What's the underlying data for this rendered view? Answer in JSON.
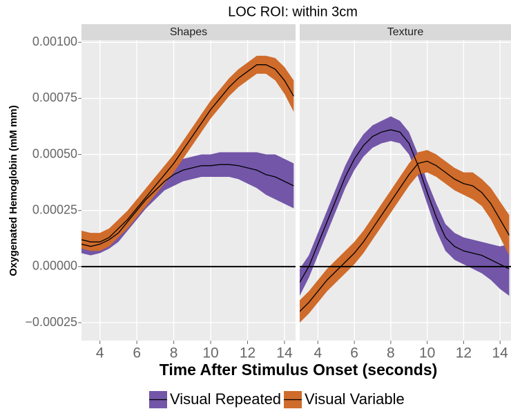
{
  "chart_data": {
    "type": "line",
    "title": "LOC ROI: within 3cm",
    "xlabel": "Time After Stimulus Onset (seconds)",
    "ylabel": "Oxygenated Hemoglobin (mM mm)",
    "xlim": [
      3,
      14.6
    ],
    "ylim": [
      -0.00033,
      0.00101
    ],
    "xticks": [
      4,
      6,
      8,
      10,
      12,
      14
    ],
    "yticks": [
      {
        "value": -0.00025,
        "label": "−0.00025"
      },
      {
        "value": 0,
        "label": "0.00000"
      },
      {
        "value": 0.00025,
        "label": "0.00025"
      },
      {
        "value": 0.0005,
        "label": "0.00050"
      },
      {
        "value": 0.00075,
        "label": "0.00075"
      },
      {
        "value": 0.001,
        "label": "0.00100"
      }
    ],
    "grid": true,
    "hline": 0,
    "legend": "bottom",
    "x": [
      3,
      3.5,
      4,
      4.5,
      5,
      5.5,
      6,
      6.5,
      7,
      7.5,
      8,
      8.5,
      9,
      9.5,
      10,
      10.5,
      11,
      11.5,
      12,
      12.5,
      13,
      13.5,
      14,
      14.5
    ],
    "facets": [
      {
        "title": "Shapes",
        "series": [
          {
            "name": "Visual Repeated",
            "color": "#7356a8",
            "values": [
              0.0001,
              9e-05,
              0.0001,
              0.00012,
              0.00015,
              0.0002,
              0.00025,
              0.0003,
              0.00034,
              0.00038,
              0.00041,
              0.00043,
              0.00044,
              0.00045,
              0.00045,
              0.000455,
              0.000455,
              0.00045,
              0.00044,
              0.00043,
              0.00041,
              0.0004,
              0.00038,
              0.00036
            ],
            "lower": [
              6e-05,
              5e-05,
              6e-05,
              8e-05,
              0.00011,
              0.00016,
              0.00021,
              0.00026,
              0.0003,
              0.00034,
              0.00036,
              0.00038,
              0.00039,
              0.0004,
              0.0004,
              0.0004,
              0.0004,
              0.00039,
              0.00037,
              0.00035,
              0.00032,
              0.0003,
              0.00028,
              0.00026
            ],
            "upper": [
              0.00014,
              0.00013,
              0.00014,
              0.00016,
              0.00019,
              0.00024,
              0.00029,
              0.00034,
              0.00038,
              0.00042,
              0.00046,
              0.00048,
              0.00049,
              0.0005,
              0.0005,
              0.00051,
              0.00051,
              0.00051,
              0.00051,
              0.00051,
              0.0005,
              0.0005,
              0.00048,
              0.00046
            ]
          },
          {
            "name": "Visual Variable",
            "color": "#cf6b2b",
            "values": [
              0.00012,
              0.00011,
              0.00011,
              0.00013,
              0.00017,
              0.00021,
              0.00026,
              0.00031,
              0.00036,
              0.00041,
              0.00046,
              0.00052,
              0.00058,
              0.00064,
              0.0007,
              0.00075,
              0.0008,
              0.00084,
              0.00087,
              0.0009,
              0.0009,
              0.00088,
              0.00083,
              0.00076
            ],
            "lower": [
              8e-05,
              7e-05,
              7e-05,
              9e-05,
              0.00013,
              0.00017,
              0.00022,
              0.00027,
              0.00032,
              0.00037,
              0.00042,
              0.00048,
              0.00054,
              0.0006,
              0.00066,
              0.00071,
              0.00076,
              0.0008,
              0.00083,
              0.00086,
              0.00086,
              0.00083,
              0.00077,
              0.00069
            ],
            "upper": [
              0.00016,
              0.00015,
              0.00015,
              0.00017,
              0.00021,
              0.00025,
              0.0003,
              0.00035,
              0.0004,
              0.00045,
              0.0005,
              0.00056,
              0.00062,
              0.00068,
              0.00074,
              0.00079,
              0.00084,
              0.00088,
              0.00091,
              0.00094,
              0.00094,
              0.00093,
              0.00089,
              0.00083
            ]
          }
        ]
      },
      {
        "title": "Texture",
        "series": [
          {
            "name": "Visual Repeated",
            "color": "#7356a8",
            "values": [
              -7e-05,
              0.0,
              0.0001,
              0.0002,
              0.0003,
              0.0004,
              0.00048,
              0.00054,
              0.00058,
              0.0006,
              0.00061,
              0.0006,
              0.00055,
              0.00045,
              0.00033,
              0.00022,
              0.00013,
              9e-05,
              7e-05,
              6e-05,
              5e-05,
              3e-05,
              1e-05,
              -1e-05
            ],
            "lower": [
              -0.00013,
              -5e-05,
              5e-05,
              0.00015,
              0.00025,
              0.00035,
              0.00043,
              0.00049,
              0.00053,
              0.00055,
              0.00056,
              0.00055,
              0.0005,
              0.0004,
              0.00028,
              0.00016,
              7e-05,
              3e-05,
              1e-05,
              -1e-05,
              -3e-05,
              -6e-05,
              -0.0001,
              -0.00013
            ],
            "upper": [
              -1e-05,
              5e-05,
              0.00015,
              0.00025,
              0.00035,
              0.00045,
              0.00053,
              0.00059,
              0.00063,
              0.00065,
              0.00067,
              0.00065,
              0.0006,
              0.0005,
              0.00038,
              0.00028,
              0.00019,
              0.00015,
              0.00013,
              0.00012,
              0.00011,
              0.0001,
              9e-05,
              0.0001
            ]
          },
          {
            "name": "Visual Variable",
            "color": "#cf6b2b",
            "values": [
              -0.0002,
              -0.00016,
              -0.00011,
              -6e-05,
              -2e-05,
              2e-05,
              6e-05,
              0.00011,
              0.00017,
              0.00023,
              0.00029,
              0.00035,
              0.00041,
              0.00046,
              0.00047,
              0.00045,
              0.00042,
              0.00039,
              0.00037,
              0.00036,
              0.00033,
              0.00028,
              0.00021,
              0.00014
            ],
            "lower": [
              -0.00025,
              -0.00021,
              -0.00016,
              -0.00011,
              -7e-05,
              -3e-05,
              1e-05,
              6e-05,
              0.00012,
              0.00018,
              0.00024,
              0.0003,
              0.00036,
              0.00041,
              0.00042,
              0.0004,
              0.00037,
              0.00034,
              0.00032,
              0.0003,
              0.00027,
              0.00021,
              0.00013,
              5e-05
            ],
            "upper": [
              -0.00015,
              -0.00011,
              -6e-05,
              -1e-05,
              3e-05,
              7e-05,
              0.00011,
              0.00016,
              0.00022,
              0.00028,
              0.00034,
              0.0004,
              0.00046,
              0.00051,
              0.00052,
              0.0005,
              0.00047,
              0.00044,
              0.00042,
              0.00042,
              0.00039,
              0.00035,
              0.00029,
              0.00023
            ]
          }
        ]
      }
    ]
  }
}
